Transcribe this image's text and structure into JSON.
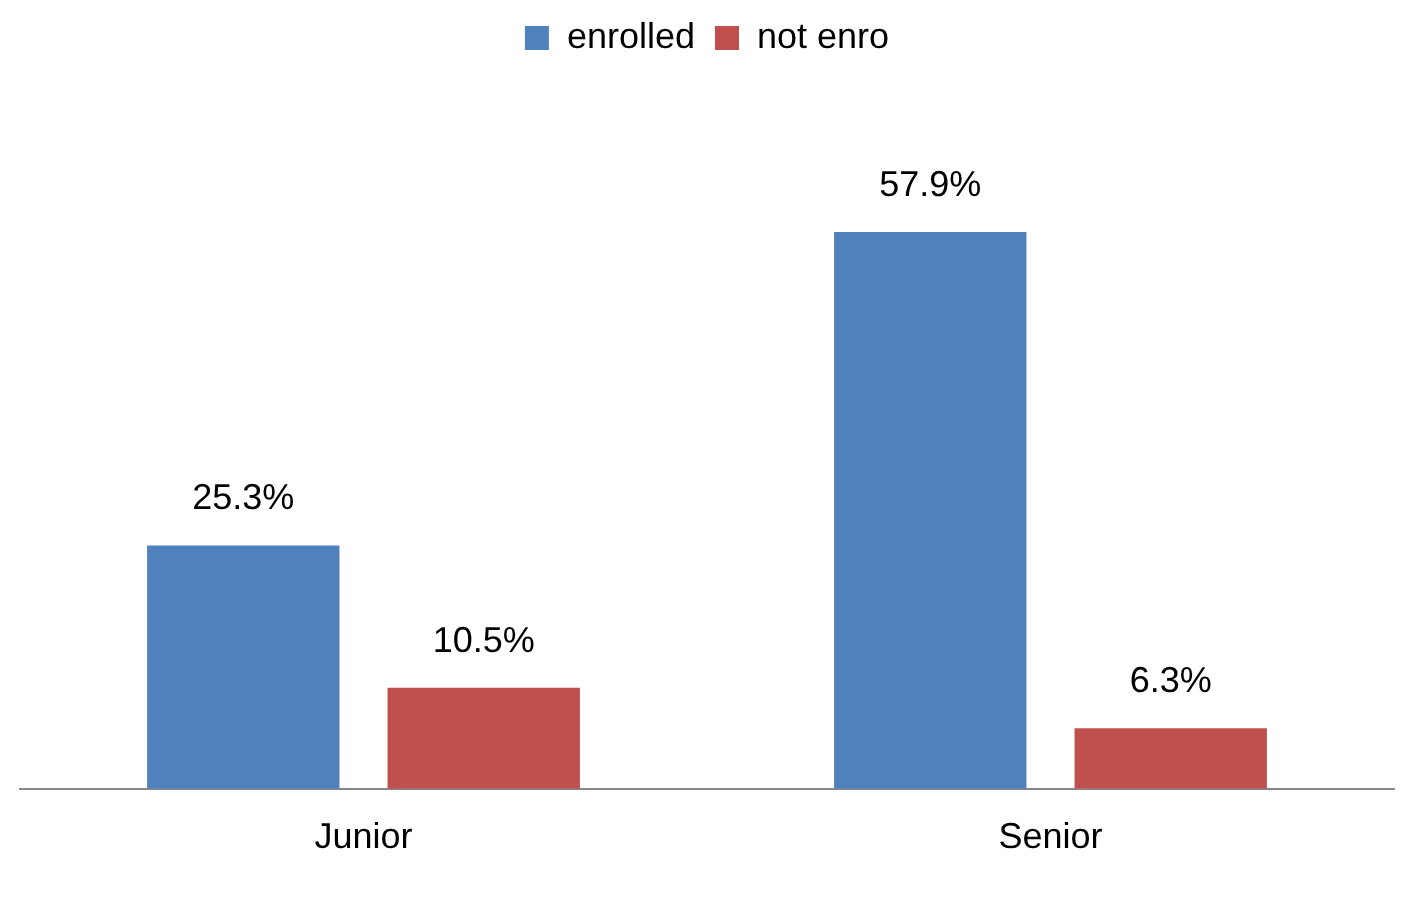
{
  "chart_data": {
    "type": "bar",
    "categories": [
      "Junior",
      "Senior"
    ],
    "series": [
      {
        "name": "enrolled",
        "color": "#4f81bd",
        "values": [
          25.3,
          57.9
        ],
        "value_labels": [
          "25.3%",
          "57.9%"
        ]
      },
      {
        "name": "not enro",
        "color": "#c0504d",
        "values": [
          10.5,
          6.3
        ],
        "value_labels": [
          "10.5%",
          "6.3%"
        ]
      }
    ],
    "legend": "top"
  }
}
